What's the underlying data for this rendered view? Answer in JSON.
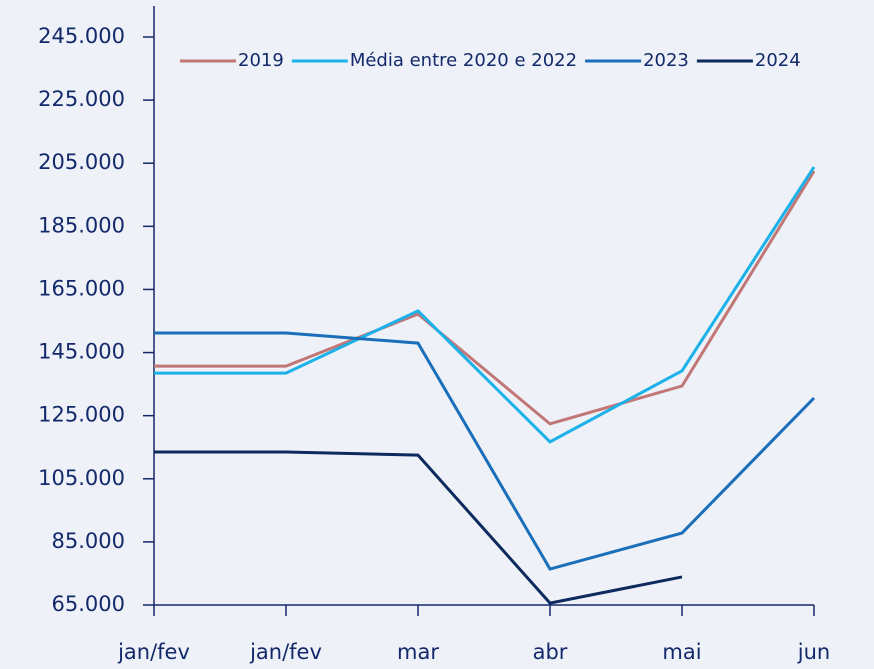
{
  "chart_data": {
    "type": "line",
    "categories": [
      "jan/fev",
      "jan/fev",
      "mar",
      "abr",
      "mai",
      "jun"
    ],
    "series": [
      {
        "name": "2019",
        "color": "#c27777",
        "values": [
          140700,
          140700,
          157200,
          122400,
          134400,
          202500
        ]
      },
      {
        "name": "Média entre 2020 e 2022",
        "color": "#1cb1e8",
        "values": [
          138500,
          138500,
          158200,
          116700,
          139200,
          203800
        ]
      },
      {
        "name": "2023",
        "color": "#1b6fba",
        "values": [
          151200,
          151200,
          148000,
          76400,
          87800,
          130600
        ]
      },
      {
        "name": "2024",
        "color": "#0c2a5e",
        "values": [
          113500,
          113500,
          112500,
          65600,
          73900,
          null
        ]
      }
    ],
    "ylim": [
      65000,
      245000
    ],
    "yticks": [
      {
        "value": 65000,
        "label": "65.000"
      },
      {
        "value": 85000,
        "label": "85.000"
      },
      {
        "value": 105000,
        "label": "105.000"
      },
      {
        "value": 125000,
        "label": "125.000"
      },
      {
        "value": 145000,
        "label": "145.000"
      },
      {
        "value": 165000,
        "label": "165.000"
      },
      {
        "value": 185000,
        "label": "185.000"
      },
      {
        "value": 205000,
        "label": "205.000"
      },
      {
        "value": 225000,
        "label": "225.000"
      },
      {
        "value": 245000,
        "label": "245.000"
      }
    ],
    "legend": "top"
  }
}
